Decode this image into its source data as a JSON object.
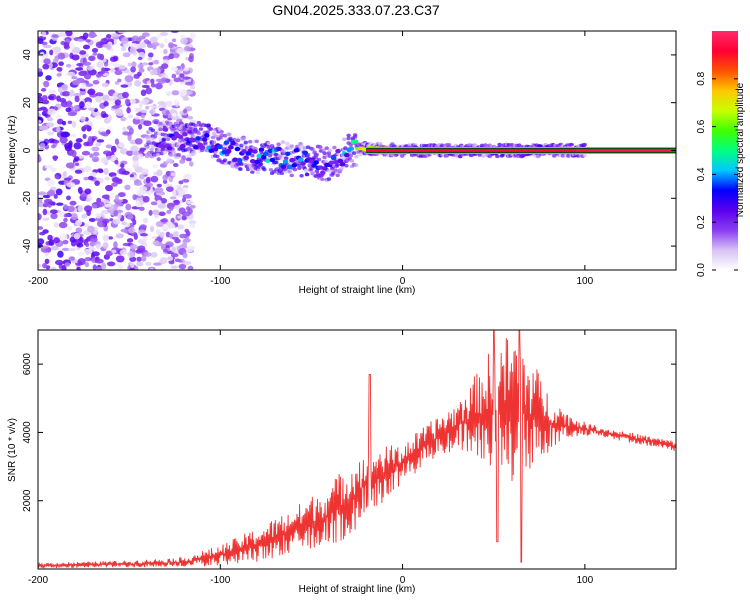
{
  "title": "GN04.2025.333.07.23.C37",
  "colorbar": {
    "label": "Normalized spectral amplitude",
    "ticks": [
      "0.0",
      "0.2",
      "0.4",
      "0.6",
      "0.8"
    ],
    "tick_values": [
      0.0,
      0.2,
      0.4,
      0.6,
      0.8
    ],
    "range": [
      0,
      1
    ],
    "colors": [
      "#ffffff",
      "#d7c2f5",
      "#8a3df0",
      "#5a00ee",
      "#0000ff",
      "#00c8ff",
      "#00ff80",
      "#40ff00",
      "#c8ff00",
      "#ffc800",
      "#ff5000",
      "#ff0033",
      "#ff2a6a"
    ]
  },
  "chart_data": [
    {
      "type": "heatmap",
      "name": "spectrogram",
      "xlabel": "Height of straight line (km)",
      "ylabel": "Frequency (Hz)",
      "xlim": [
        -200,
        150
      ],
      "ylim": [
        -50,
        50
      ],
      "xticks": [
        -200,
        -100,
        0,
        100
      ],
      "xtick_labels": [
        "-200",
        "-100",
        "0",
        "100"
      ],
      "yticks": [
        -40,
        -20,
        0,
        20,
        40
      ],
      "ytick_labels": [
        "-40",
        "-20",
        "0",
        "20",
        "40"
      ],
      "noise_region_km": [
        -200,
        -115
      ],
      "signal_band": [
        {
          "x": -140,
          "y": 5,
          "amp": 0.3
        },
        {
          "x": -125,
          "y": 5,
          "amp": 0.35
        },
        {
          "x": -110,
          "y": 5,
          "amp": 0.4
        },
        {
          "x": -100,
          "y": 2,
          "amp": 0.45
        },
        {
          "x": -85,
          "y": -2,
          "amp": 0.45
        },
        {
          "x": -70,
          "y": -3,
          "amp": 0.5
        },
        {
          "x": -55,
          "y": -4,
          "amp": 0.45
        },
        {
          "x": -40,
          "y": -6,
          "amp": 0.4
        },
        {
          "x": -30,
          "y": 0,
          "amp": 0.45
        },
        {
          "x": -20,
          "y": 1,
          "amp": 0.85
        },
        {
          "x": 0,
          "y": 0,
          "amp": 0.9
        },
        {
          "x": 25,
          "y": 0,
          "amp": 0.9
        },
        {
          "x": 50,
          "y": 0,
          "amp": 0.85
        },
        {
          "x": 75,
          "y": 0,
          "amp": 0.85
        },
        {
          "x": 95,
          "y": 0,
          "amp": 0.8
        },
        {
          "x": 150,
          "y": 0,
          "amp": 0.9
        }
      ]
    },
    {
      "type": "line",
      "name": "snr",
      "xlabel": "Height of straight line (km)",
      "ylabel": "SNR (10 * v/v)",
      "xlim": [
        -200,
        150
      ],
      "ylim": [
        0,
        7000
      ],
      "xticks": [
        -200,
        -100,
        0,
        100
      ],
      "xtick_labels": [
        "-200",
        "-100",
        "0",
        "100"
      ],
      "yticks": [
        2000,
        4000,
        6000
      ],
      "ytick_labels": [
        "2000",
        "4000",
        "6000"
      ],
      "color": "#ee3333",
      "envelope": {
        "x": [
          -200,
          -150,
          -120,
          -100,
          -80,
          -60,
          -40,
          -30,
          -20,
          -10,
          0,
          10,
          20,
          30,
          40,
          50,
          60,
          70,
          80,
          90,
          100,
          110,
          120,
          130,
          140,
          150
        ],
        "y": [
          100,
          150,
          200,
          400,
          700,
          1100,
          1600,
          2000,
          2500,
          2800,
          3100,
          3500,
          3900,
          4200,
          4500,
          4600,
          4700,
          4500,
          4300,
          4200,
          4100,
          4000,
          3900,
          3800,
          3700,
          3600
        ],
        "spread": [
          80,
          100,
          150,
          300,
          500,
          700,
          900,
          1100,
          1000,
          800,
          600,
          600,
          600,
          700,
          1200,
          2000,
          2300,
          1800,
          900,
          400,
          200,
          150,
          150,
          150,
          150,
          150
        ]
      },
      "peaks": [
        {
          "x": -18,
          "y": 5700
        },
        {
          "x": 50,
          "y": 7000
        },
        {
          "x": 64,
          "y": 7000
        }
      ],
      "dips": [
        {
          "x": 52,
          "y": 800
        },
        {
          "x": 65,
          "y": 200
        }
      ]
    }
  ]
}
